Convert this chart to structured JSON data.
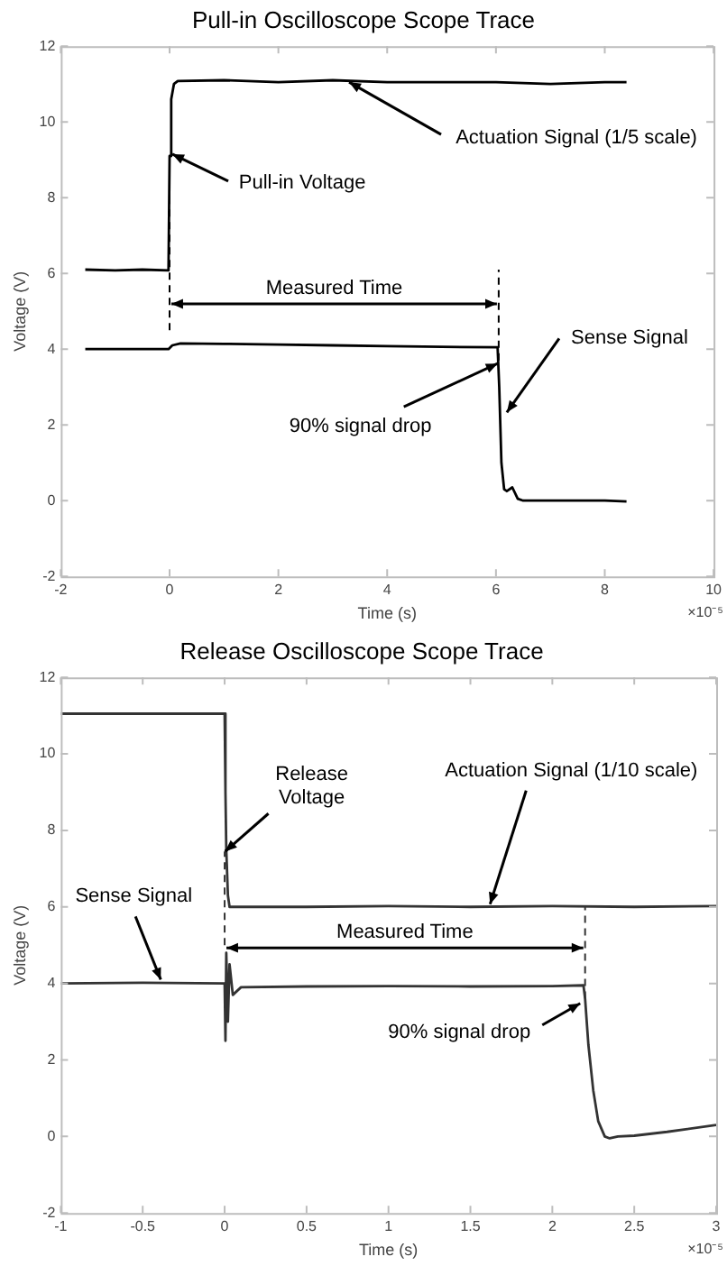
{
  "chart_data": [
    {
      "type": "line",
      "title": "Pull-in Oscilloscope Scope Trace",
      "xlabel": "Time (s)",
      "ylabel": "Voltage (V)",
      "xlim": [
        -2,
        10
      ],
      "xticks": [
        -2,
        0,
        2,
        4,
        6,
        8,
        10
      ],
      "ylim": [
        -2,
        12
      ],
      "yticks": [
        -2,
        0,
        2,
        4,
        6,
        8,
        10,
        12
      ],
      "grid": false,
      "legend": false,
      "marker": "none",
      "series": [
        {
          "color": "#000000",
          "x": [
            -1.55,
            -1,
            -0.5,
            -0.02,
            0,
            0.03,
            0.08,
            0.15,
            1,
            2,
            3,
            4,
            5,
            6,
            7,
            8,
            8.4
          ],
          "values": [
            6.1,
            6.08,
            6.1,
            6.08,
            9.1,
            10.6,
            11.0,
            11.08,
            11.1,
            11.05,
            11.1,
            11.05,
            11.05,
            11.05,
            11.0,
            11.05,
            11.05
          ]
        },
        {
          "color": "#000000",
          "x": [
            -1.55,
            -0.02,
            0.05,
            0.2,
            1,
            2,
            3,
            4,
            5,
            6.03,
            6.06,
            6.1,
            6.15,
            6.2,
            6.3,
            6.4,
            6.5,
            7,
            8,
            8.4
          ],
          "values": [
            4.0,
            4.0,
            4.1,
            4.15,
            4.14,
            4.12,
            4.1,
            4.08,
            4.06,
            4.05,
            3.0,
            1.0,
            0.3,
            0.25,
            0.35,
            0.05,
            0.0,
            0.0,
            0.0,
            -0.02
          ]
        },
        {
          "color": "#000000",
          "line_style": "dashed",
          "x": [
            0,
            0
          ],
          "values": [
            4.5,
            9.1
          ]
        },
        {
          "color": "#000000",
          "line_style": "dashed",
          "x": [
            6.05,
            6.05
          ],
          "values": [
            3.7,
            6.1
          ]
        }
      ],
      "annotations": [
        "Measured Time",
        {
          "text": "Actuation Signal (1/5 scale)",
          "x": 3.3,
          "y": 11.05
        },
        {
          "text": "Pull-in Voltage",
          "x": 0.05,
          "y": 9.15
        },
        {
          "text": "Sense Signal",
          "x": 6.2,
          "y": 2.33
        },
        {
          "text": "90% signal drop",
          "x": 6.03,
          "y": 3.62
        },
        "×10⁻⁵"
      ]
    },
    {
      "type": "line",
      "title": "Release Oscilloscope Scope Trace",
      "xlabel": "Time (s)",
      "ylabel": "Voltage (V)",
      "xlim": [
        -1,
        3
      ],
      "xticks": [
        -1,
        -0.5,
        0,
        0.5,
        1,
        1.5,
        2,
        2.5,
        3
      ],
      "ylim": [
        -2,
        12
      ],
      "yticks": [
        -2,
        0,
        2,
        4,
        6,
        8,
        10,
        12
      ],
      "grid": false,
      "legend": false,
      "marker": "none",
      "series": [
        {
          "color": "#333333",
          "x": [
            -1,
            -0.5,
            0,
            0.005,
            0.01,
            0.02,
            0.03,
            0.5,
            1,
            1.5,
            2,
            2.5,
            3
          ],
          "values": [
            11.05,
            11.05,
            11.05,
            9.0,
            7.5,
            6.3,
            6.0,
            6.0,
            6.02,
            6.0,
            6.02,
            6.0,
            6.02
          ]
        },
        {
          "color": "#333333",
          "x": [
            -1,
            -0.5,
            0,
            0.005,
            0.01,
            0.02,
            0.03,
            0.05,
            0.1,
            0.5,
            1,
            1.5,
            2,
            2.19,
            2.2,
            2.22,
            2.25,
            2.28,
            2.32,
            2.35,
            2.4,
            2.5,
            2.7,
            3
          ],
          "values": [
            4.0,
            4.02,
            4.0,
            2.5,
            4.8,
            3.0,
            4.5,
            3.7,
            3.9,
            3.92,
            3.93,
            3.92,
            3.93,
            3.95,
            3.6,
            2.4,
            1.2,
            0.4,
            0.0,
            -0.05,
            0.0,
            0.02,
            0.12,
            0.3
          ]
        },
        {
          "color": "#333333",
          "line_style": "dashed",
          "x": [
            0,
            0
          ],
          "values": [
            5.0,
            7.45
          ]
        },
        {
          "color": "#333333",
          "line_style": "dashed",
          "x": [
            2.2,
            2.2
          ],
          "values": [
            3.6,
            6.0
          ]
        }
      ],
      "annotations": [
        "Measured Time",
        {
          "text": "Release\nVoltage",
          "x": 0.003,
          "y": 7.45
        },
        {
          "text": "Actuation Signal (1/10 scale)",
          "x": 1.62,
          "y": 6.07
        },
        {
          "text": "Sense Signal",
          "x": -0.39,
          "y": 4.1
        },
        {
          "text": "90% signal drop",
          "x": 2.17,
          "y": 3.48
        },
        "×10⁻⁵"
      ]
    }
  ]
}
